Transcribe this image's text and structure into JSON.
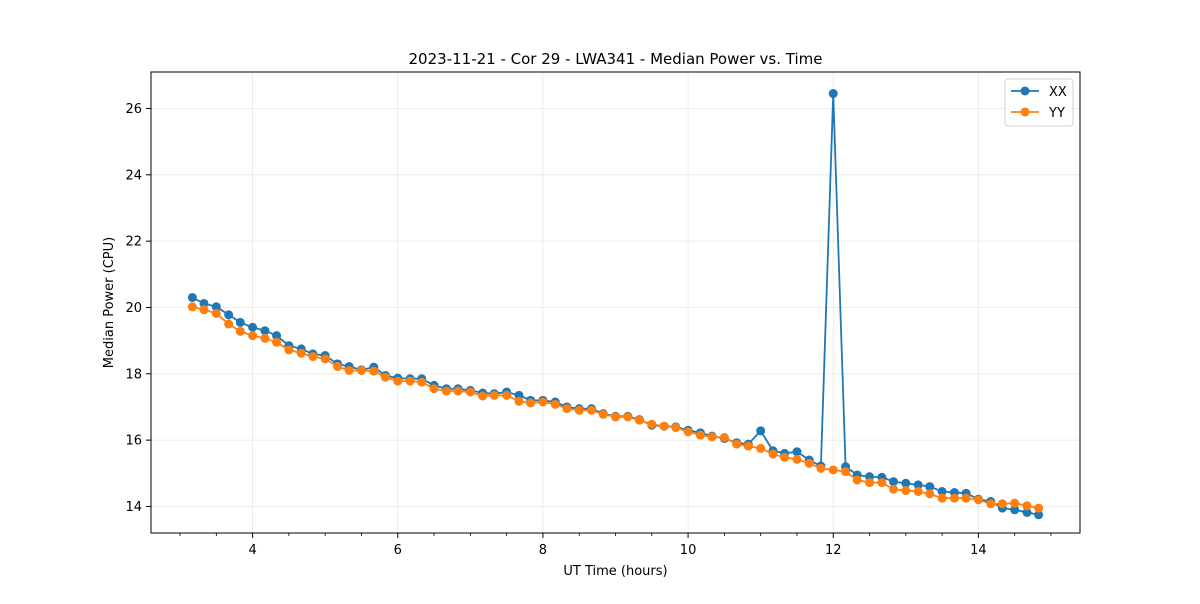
{
  "chart_data": {
    "type": "line",
    "title": "2023-11-21 - Cor 29 - LWA341 - Median Power vs. Time",
    "xlabel": "UT Time (hours)",
    "ylabel": "Median Power (CPU)",
    "xlim": [
      2.6,
      15.4
    ],
    "ylim": [
      13.2,
      27.1
    ],
    "x_ticks": [
      4,
      6,
      8,
      10,
      12,
      14
    ],
    "x_tick_labels": [
      "4",
      "6",
      "8",
      "10",
      "12",
      "14"
    ],
    "y_ticks": [
      14,
      16,
      18,
      20,
      22,
      24,
      26
    ],
    "y_tick_labels": [
      "14",
      "16",
      "18",
      "20",
      "22",
      "24",
      "26"
    ],
    "grid": true,
    "legend_position": "top-right",
    "x": [
      3.17,
      3.33,
      3.5,
      3.67,
      3.83,
      4.0,
      4.17,
      4.33,
      4.5,
      4.67,
      4.83,
      5.0,
      5.17,
      5.33,
      5.5,
      5.67,
      5.83,
      6.0,
      6.17,
      6.33,
      6.5,
      6.67,
      6.83,
      7.0,
      7.17,
      7.33,
      7.5,
      7.67,
      7.83,
      8.0,
      8.17,
      8.33,
      8.5,
      8.67,
      8.83,
      9.0,
      9.17,
      9.33,
      9.5,
      9.67,
      9.83,
      10.0,
      10.17,
      10.33,
      10.5,
      10.67,
      10.83,
      11.0,
      11.17,
      11.33,
      11.5,
      11.67,
      11.83,
      12.0,
      12.17,
      12.33,
      12.5,
      12.67,
      12.83,
      13.0,
      13.17,
      13.33,
      13.5,
      13.67,
      13.83,
      14.0,
      14.17,
      14.33,
      14.5,
      14.67,
      14.83
    ],
    "series": [
      {
        "name": "XX",
        "color": "#1f77b4",
        "values": [
          20.3,
          20.12,
          20.02,
          19.78,
          19.55,
          19.4,
          19.3,
          19.15,
          18.85,
          18.75,
          18.6,
          18.55,
          18.3,
          18.22,
          18.12,
          18.2,
          17.95,
          17.87,
          17.85,
          17.85,
          17.65,
          17.55,
          17.55,
          17.5,
          17.42,
          17.4,
          17.45,
          17.35,
          17.2,
          17.2,
          17.15,
          17.0,
          16.95,
          16.95,
          16.8,
          16.72,
          16.72,
          16.62,
          16.45,
          16.42,
          16.4,
          16.3,
          16.22,
          16.12,
          16.05,
          15.92,
          15.88,
          16.28,
          15.68,
          15.6,
          15.65,
          15.4,
          15.22,
          26.45,
          15.2,
          14.95,
          14.9,
          14.88,
          14.75,
          14.7,
          14.65,
          14.6,
          14.45,
          14.42,
          14.4,
          14.22,
          14.15,
          13.95,
          13.9,
          13.82,
          13.75
        ]
      },
      {
        "name": "YY",
        "color": "#ff7f0e",
        "values": [
          20.02,
          19.93,
          19.82,
          19.5,
          19.28,
          19.15,
          19.07,
          18.95,
          18.72,
          18.62,
          18.52,
          18.45,
          18.22,
          18.1,
          18.1,
          18.08,
          17.9,
          17.78,
          17.78,
          17.75,
          17.55,
          17.48,
          17.48,
          17.45,
          17.33,
          17.35,
          17.35,
          17.17,
          17.12,
          17.15,
          17.08,
          16.95,
          16.9,
          16.9,
          16.78,
          16.7,
          16.7,
          16.6,
          16.48,
          16.42,
          16.38,
          16.25,
          16.15,
          16.1,
          16.08,
          15.88,
          15.82,
          15.75,
          15.58,
          15.48,
          15.42,
          15.3,
          15.15,
          15.1,
          15.05,
          14.8,
          14.72,
          14.72,
          14.52,
          14.48,
          14.45,
          14.38,
          14.25,
          14.25,
          14.25,
          14.2,
          14.08,
          14.08,
          14.1,
          14.02,
          13.95
        ]
      }
    ]
  }
}
